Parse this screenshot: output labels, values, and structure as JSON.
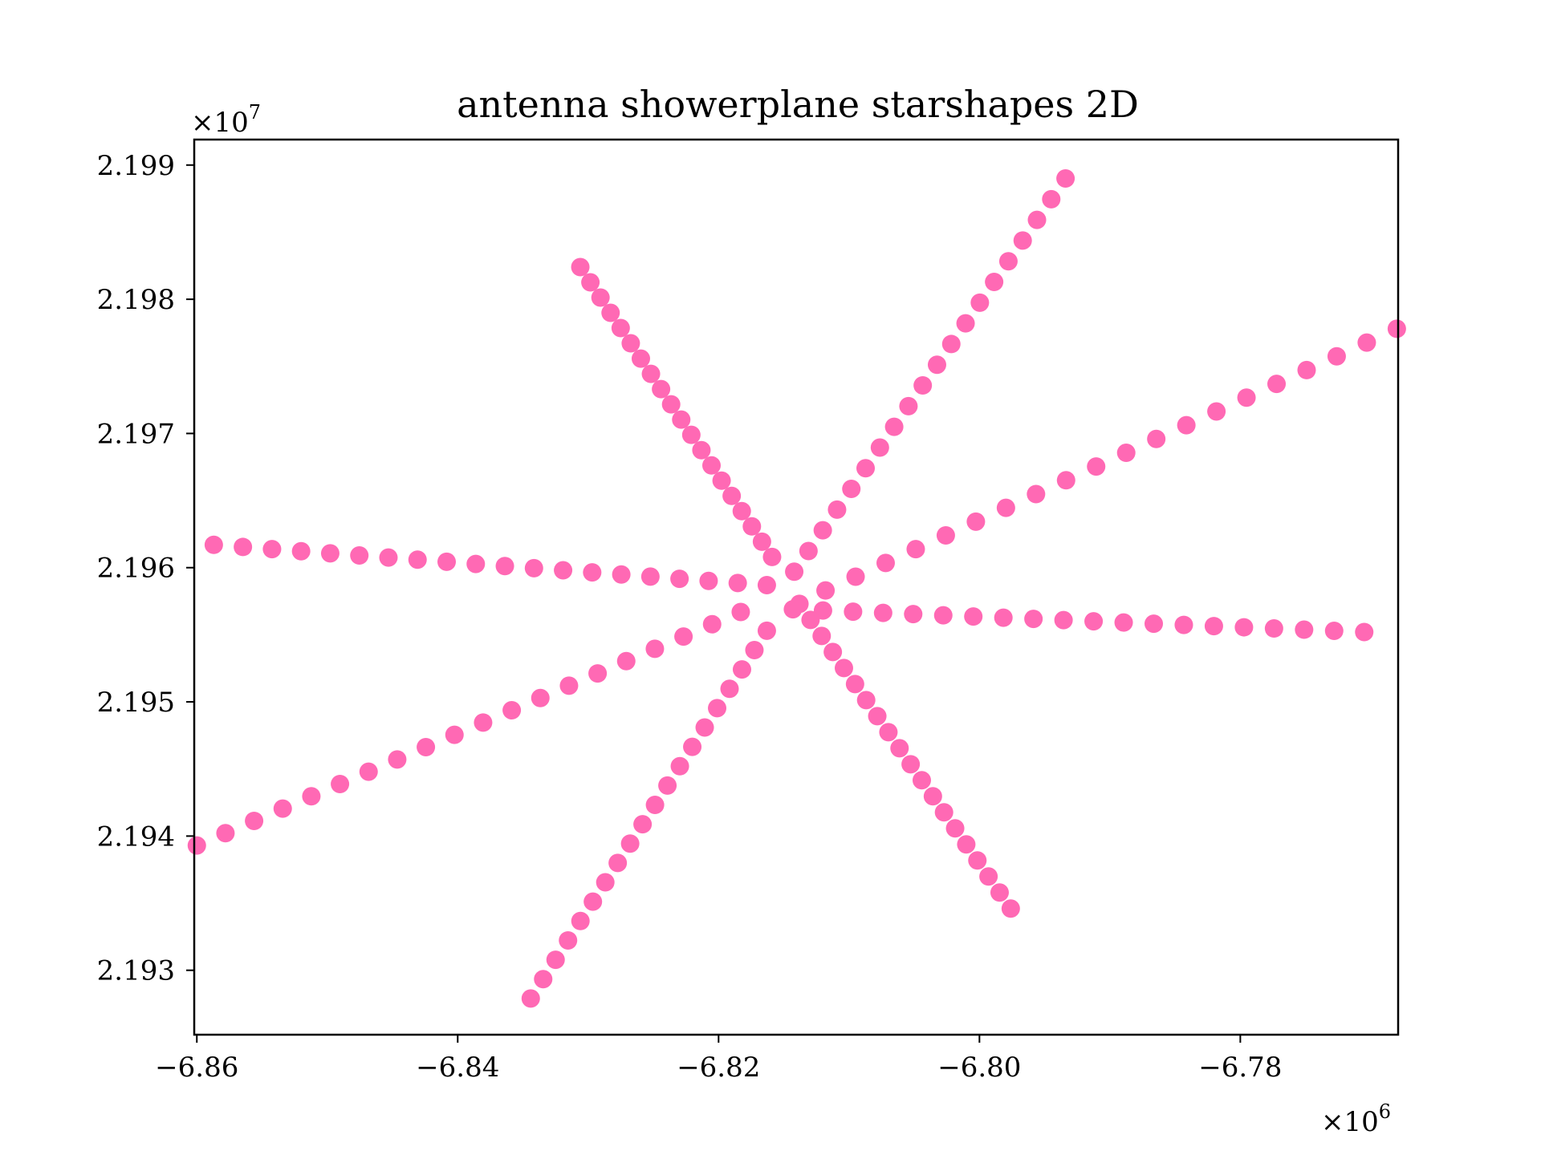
{
  "chart_data": {
    "type": "scatter",
    "title": "antenna showerplane starshapes 2D",
    "xlabel": "",
    "ylabel": "",
    "x_offset_label": "×10",
    "x_offset_exp": "6",
    "y_offset_label": "×10",
    "y_offset_exp": "7",
    "xlim": [
      -6.8602,
      -6.7679
    ],
    "ylim": [
      2.19252,
      2.19919
    ],
    "grid": false,
    "legend": "none",
    "marker_color": "#ff69b4",
    "x_ticks": [
      {
        "value": -6.86,
        "label": "−6.86"
      },
      {
        "value": -6.84,
        "label": "−6.84"
      },
      {
        "value": -6.82,
        "label": "−6.82"
      },
      {
        "value": -6.8,
        "label": "−6.80"
      },
      {
        "value": -6.78,
        "label": "−6.78"
      }
    ],
    "y_ticks": [
      {
        "value": 2.193,
        "label": "2.193"
      },
      {
        "value": 2.194,
        "label": "2.194"
      },
      {
        "value": 2.195,
        "label": "2.195"
      },
      {
        "value": 2.196,
        "label": "2.196"
      },
      {
        "value": 2.197,
        "label": "2.197"
      },
      {
        "value": 2.198,
        "label": "2.198"
      },
      {
        "value": 2.199,
        "label": "2.199"
      }
    ],
    "arms": [
      {
        "start": [
          -6.8143,
          2.19569
        ],
        "end": [
          -6.7705,
          2.19552
        ],
        "n": 20
      },
      {
        "start": [
          -6.8142,
          2.19597
        ],
        "end": [
          -6.7934,
          2.1989
        ],
        "n": 20
      },
      {
        "start": [
          -6.8163,
          2.19587
        ],
        "end": [
          -6.8587,
          2.19617
        ],
        "n": 20
      },
      {
        "start": [
          -6.8163,
          2.19553
        ],
        "end": [
          -6.8344,
          2.19279
        ],
        "n": 20
      },
      {
        "start": [
          -6.8138,
          2.19573
        ],
        "end": [
          -6.7976,
          2.19346
        ],
        "n": 20
      },
      {
        "start": [
          -6.8159,
          2.19608
        ],
        "end": [
          -6.8306,
          2.19824
        ],
        "n": 20
      },
      {
        "start": [
          -6.8118,
          2.19583
        ],
        "end": [
          -6.768,
          2.19778
        ],
        "n": 20
      },
      {
        "start": [
          -6.8183,
          2.19567
        ],
        "end": [
          -6.86,
          2.19393
        ],
        "n": 20
      }
    ]
  }
}
